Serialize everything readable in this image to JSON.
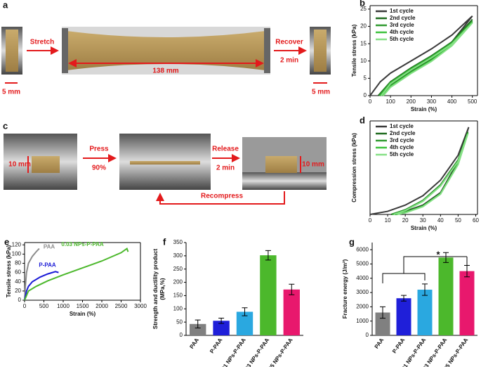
{
  "panel_a": {
    "label": "a",
    "steps": [
      "Stretch",
      "Recover",
      "2 min"
    ],
    "dims": [
      "5 mm",
      "138 mm",
      "5 mm"
    ]
  },
  "panel_c": {
    "label": "c",
    "steps": [
      "Press",
      "90%",
      "Release",
      "2 min",
      "Recompress"
    ],
    "dims": [
      "10 mm",
      "10 mm"
    ]
  },
  "chart_data": [
    {
      "type": "line",
      "panel": "b",
      "x_label": "Strain (%)",
      "y_label": "Tensile stress (kPa)",
      "xlim": [
        0,
        525
      ],
      "ylim": [
        0,
        26
      ],
      "xticks": [
        0,
        100,
        200,
        300,
        400,
        500
      ],
      "yticks": [
        0,
        5,
        10,
        15,
        20,
        25
      ],
      "legend": "upper left",
      "series": [
        {
          "name": "1st cycle",
          "color": "#3a3a3a",
          "x": [
            0,
            50,
            100,
            200,
            300,
            400,
            500,
            400,
            300,
            200,
            100,
            40
          ],
          "values": [
            0,
            4,
            6.5,
            10,
            13.5,
            17.5,
            23,
            15.5,
            11,
            7.5,
            3.5,
            0
          ]
        },
        {
          "name": "2nd cycle",
          "color": "#1e6b1e",
          "x": [
            40,
            100,
            200,
            300,
            400,
            500,
            400,
            300,
            200,
            100,
            50
          ],
          "values": [
            0,
            4,
            8,
            11.5,
            15.5,
            22,
            15,
            10.5,
            7,
            3,
            0
          ]
        },
        {
          "name": "3rd cycle",
          "color": "#2f9a2f",
          "x": [
            45,
            100,
            200,
            300,
            400,
            500,
            400,
            300,
            200,
            100,
            55
          ],
          "values": [
            0,
            3.8,
            7.8,
            11.3,
            15.3,
            21.5,
            14.8,
            10.3,
            6.8,
            2.8,
            0
          ]
        },
        {
          "name": "4th cycle",
          "color": "#3cc23c",
          "x": [
            50,
            100,
            200,
            300,
            400,
            500,
            400,
            300,
            200,
            100,
            60
          ],
          "values": [
            0,
            3.6,
            7.6,
            11.1,
            15.1,
            21.2,
            14.6,
            10.1,
            6.6,
            2.6,
            0
          ]
        },
        {
          "name": "5th cycle",
          "color": "#86e086",
          "x": [
            55,
            100,
            200,
            300,
            400,
            500,
            400,
            300,
            200,
            100,
            65
          ],
          "values": [
            0,
            3.4,
            7.4,
            10.9,
            14.9,
            21,
            14.4,
            9.9,
            6.4,
            2.4,
            0
          ]
        }
      ]
    },
    {
      "type": "line",
      "panel": "d",
      "x_label": "Strain (%)",
      "y_label": "Compression stress (kPa)",
      "xlim": [
        0,
        61
      ],
      "ylim": [
        0,
        30
      ],
      "xticks": [
        0,
        10,
        20,
        30,
        40,
        50,
        60
      ],
      "legend": "upper left",
      "series": [
        {
          "name": "1st cycle",
          "color": "#3a3a3a",
          "x": [
            0,
            10,
            20,
            30,
            40,
            50,
            56,
            50,
            40,
            30,
            20,
            14
          ],
          "values": [
            0,
            1,
            3,
            6,
            11,
            19,
            28,
            17,
            7,
            3,
            1,
            0
          ]
        },
        {
          "name": "2nd cycle",
          "color": "#1e6b1e",
          "x": [
            12,
            20,
            30,
            40,
            50,
            55.5,
            50,
            40,
            30,
            20,
            14
          ],
          "values": [
            0,
            1.5,
            4.5,
            9.5,
            17.5,
            26.5,
            16.5,
            6.8,
            2.8,
            0.8,
            0
          ]
        },
        {
          "name": "3rd cycle",
          "color": "#2f9a2f",
          "x": [
            12.5,
            20,
            30,
            40,
            50,
            55.5,
            50,
            40,
            30,
            20,
            14.5
          ],
          "values": [
            0,
            1.4,
            4.4,
            9.3,
            17.3,
            26.2,
            16.3,
            6.7,
            2.7,
            0.7,
            0
          ]
        },
        {
          "name": "4th cycle",
          "color": "#3cc23c",
          "x": [
            13,
            20,
            30,
            40,
            50,
            55.5,
            50,
            40,
            30,
            20,
            15
          ],
          "values": [
            0,
            1.3,
            4.3,
            9.2,
            17.1,
            26,
            16.1,
            6.6,
            2.6,
            0.6,
            0
          ]
        },
        {
          "name": "5th cycle",
          "color": "#86e086",
          "x": [
            13.5,
            20,
            30,
            40,
            50,
            55.5,
            50,
            40,
            30,
            20,
            15.5
          ],
          "values": [
            0,
            1.2,
            4.2,
            9.1,
            17,
            25.8,
            16,
            6.5,
            2.5,
            0.5,
            0
          ]
        }
      ]
    },
    {
      "type": "line",
      "panel": "e",
      "x_label": "Strain (%)",
      "y_label": "Tensile stress (kPa)",
      "xlim": [
        0,
        3000
      ],
      "ylim": [
        0,
        125
      ],
      "xticks": [
        0,
        500,
        1000,
        1500,
        2000,
        2500,
        3000
      ],
      "yticks": [
        0,
        20,
        40,
        60,
        80,
        100,
        120
      ],
      "legend": "inline",
      "series": [
        {
          "name": "PAA",
          "color": "#8c8c8c",
          "x": [
            0,
            20,
            50,
            100,
            200,
            300,
            380
          ],
          "values": [
            0,
            30,
            60,
            80,
            95,
            105,
            112
          ]
        },
        {
          "name": "P-PAA",
          "color": "#1a1ad6",
          "x": [
            0,
            50,
            100,
            200,
            400,
            600,
            800,
            880
          ],
          "values": [
            0,
            20,
            30,
            40,
            50,
            57,
            62,
            60
          ]
        },
        {
          "name": "0.03 NPs-P-PAA",
          "color": "#4cb82c",
          "x": [
            0,
            100,
            300,
            600,
            1000,
            1500,
            2000,
            2500,
            2650,
            2680
          ],
          "values": [
            0,
            20,
            30,
            42,
            55,
            70,
            85,
            103,
            112,
            105
          ]
        }
      ]
    },
    {
      "type": "bar",
      "panel": "f",
      "y_label": [
        "Strength and ductility product",
        "(MPa,%)"
      ],
      "categories": [
        "PAA",
        "P-PAA",
        "0.01 NPs-P-PAA",
        "0.03 NPs-P-PAA",
        "0.05 NPs-P-PAA"
      ],
      "values": [
        43,
        55,
        89,
        302,
        173
      ],
      "errors": [
        15,
        10,
        15,
        18,
        20
      ],
      "colors": [
        "#808080",
        "#1f1fd9",
        "#2aa8e0",
        "#4cb82c",
        "#e8186d"
      ],
      "ylim": [
        0,
        350
      ],
      "yticks": [
        0,
        50,
        100,
        150,
        200,
        250,
        300,
        350
      ]
    },
    {
      "type": "bar",
      "panel": "g",
      "y_label": "Fracture energy (J/m²)",
      "annotation": "*",
      "categories": [
        "PAA",
        "P-PAA",
        "0.01 NPs-P-PAA",
        "0.03 NPs-P-PAA",
        "0.05 NPs-P-PAA"
      ],
      "values": [
        1600,
        2600,
        3200,
        5450,
        4500
      ],
      "errors": [
        400,
        200,
        400,
        350,
        400
      ],
      "colors": [
        "#808080",
        "#1f1fd9",
        "#2aa8e0",
        "#4cb82c",
        "#e8186d"
      ],
      "ylim": [
        0,
        6500
      ],
      "yticks": [
        0,
        1000,
        2000,
        3000,
        4000,
        5000,
        6000
      ]
    }
  ]
}
